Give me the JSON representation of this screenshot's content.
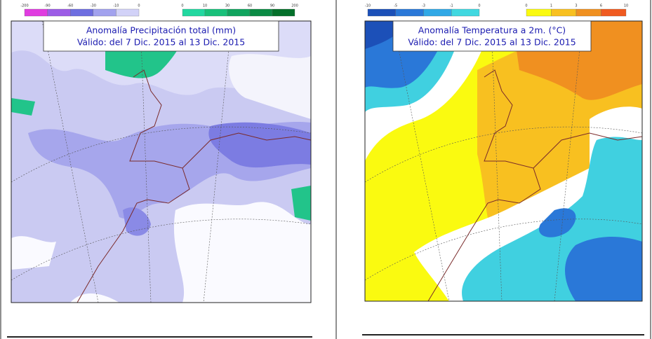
{
  "panels": [
    {
      "title": "Anomalía Precipitación total (mm)",
      "subtitle": "Válido: del 7 Dic. 2015 al 13 Dic. 2015",
      "scales": [
        {
          "labels": [
            "-200",
            "-90",
            "-60",
            "-30",
            "-10",
            "0"
          ],
          "colors": [
            "#e03ce0",
            "#9c5ce6",
            "#6e6ee0",
            "#a2a2ee",
            "#d2d2f8"
          ]
        },
        {
          "labels": [
            "0",
            "10",
            "30",
            "60",
            "90",
            "200"
          ],
          "colors": [
            "#22d8a0",
            "#18c07a",
            "#10a45e",
            "#0a8a44",
            "#04702a"
          ]
        }
      ]
    },
    {
      "title": "Anomalía Temperatura a 2m. (°C)",
      "subtitle": "Válido: del 7 Dic. 2015 al 13 Dic. 2015",
      "scales": [
        {
          "labels": [
            "-10",
            "-5",
            "-3",
            "-1",
            "0"
          ],
          "colors": [
            "#1c50b8",
            "#2a78d8",
            "#30a8e6",
            "#40d8e0"
          ]
        },
        {
          "labels": [
            "0",
            "1",
            "3",
            "6",
            "10"
          ],
          "colors": [
            "#fafa10",
            "#f8c020",
            "#f09020",
            "#f05a20"
          ]
        }
      ]
    }
  ]
}
